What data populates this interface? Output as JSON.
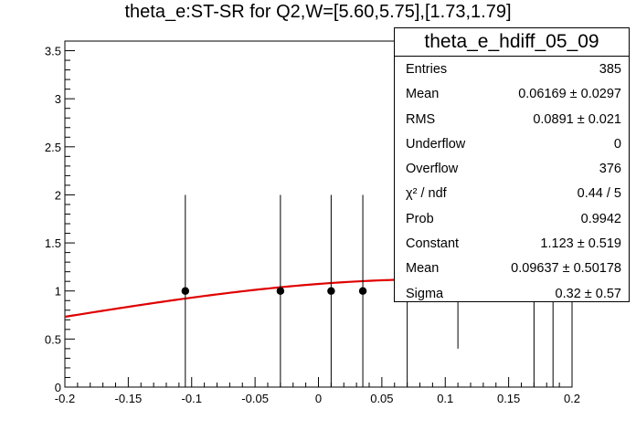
{
  "title": "theta_e:ST-SR for Q2,W=[5.60,5.75],[1.73,1.79]",
  "stats_box": {
    "name": "theta_e_hdiff_05_09",
    "rows": [
      {
        "key": "Entries",
        "value": "385"
      },
      {
        "key": "Mean",
        "value": "0.06169 ± 0.0297"
      },
      {
        "key": "RMS",
        "value": "0.0891 ±  0.021"
      },
      {
        "key": "Underflow",
        "value": "0"
      },
      {
        "key": "Overflow",
        "value": "376"
      },
      {
        "key": "χ² / ndf",
        "value": "0.44 / 5"
      },
      {
        "key": "Prob",
        "value": "0.9942"
      },
      {
        "key": "Constant",
        "value": "1.123 ± 0.519"
      },
      {
        "key": "Mean",
        "value": "0.09637 ± 0.50178"
      },
      {
        "key": "Sigma",
        "value": "0.32 ± 0.57"
      }
    ]
  },
  "chart_data": {
    "type": "scatter",
    "title": "theta_e:ST-SR for Q2,W=[5.60,5.75],[1.73,1.79]",
    "xlabel": "",
    "ylabel": "",
    "xlim": [
      -0.2,
      0.2
    ],
    "ylim": [
      0,
      3.6
    ],
    "x_ticks": [
      "-0.2",
      "-0.15",
      "-0.1",
      "-0.05",
      "0",
      "0.05",
      "0.1",
      "0.15",
      "0.2"
    ],
    "y_ticks": [
      "0",
      "0.5",
      "1",
      "1.5",
      "2",
      "2.5",
      "3",
      "3.5"
    ],
    "grid": false,
    "points": [
      {
        "x": -0.105,
        "y": 1,
        "err_low": 1,
        "err_high": 1
      },
      {
        "x": -0.03,
        "y": 1,
        "err_low": 1,
        "err_high": 1
      },
      {
        "x": 0.01,
        "y": 1,
        "err_low": 1,
        "err_high": 1
      },
      {
        "x": 0.035,
        "y": 1,
        "err_low": 1,
        "err_high": 1
      },
      {
        "x": 0.07,
        "y": 1,
        "err_low": 1,
        "err_high": 1
      },
      {
        "x": 0.11,
        "y": 1,
        "err_low": 0.6,
        "err_high": 1
      },
      {
        "x": 0.17,
        "y": 1,
        "err_low": 1,
        "err_high": 1
      },
      {
        "x": 0.185,
        "y": 1,
        "err_low": 1,
        "err_high": 1
      },
      {
        "x": 0.2,
        "y": 1,
        "err_low": 1,
        "err_high": 1
      }
    ],
    "fit": {
      "function": "gaussian",
      "constant": 1.123,
      "mean": 0.09637,
      "sigma": 0.32,
      "color": "#e00000"
    },
    "marker_color": "#000000"
  }
}
